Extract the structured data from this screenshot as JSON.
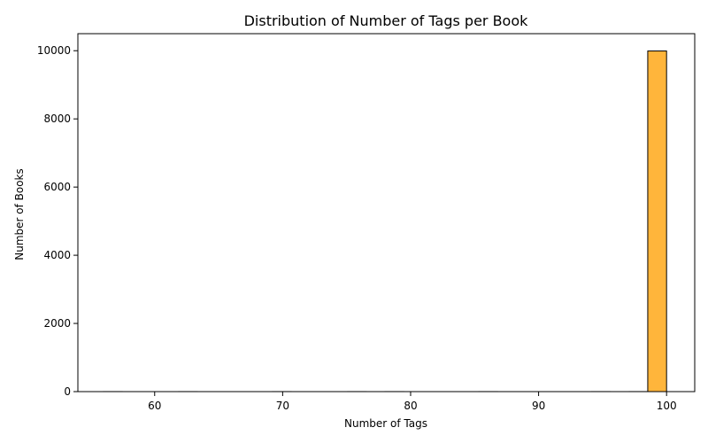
{
  "chart_data": {
    "type": "bar",
    "title": "Distribution of Number of Tags per Book",
    "xlabel": "Number of Tags",
    "ylabel": "Number of Books",
    "xlim": [
      54.0,
      102.2
    ],
    "ylim": [
      0,
      10500
    ],
    "xticks": [
      60,
      70,
      80,
      90,
      100
    ],
    "yticks": [
      0,
      2000,
      4000,
      6000,
      8000,
      10000
    ],
    "bin_edges": [
      56.0,
      57.47,
      58.93,
      60.4,
      61.87,
      63.33,
      64.8,
      66.27,
      67.73,
      69.2,
      70.67,
      72.13,
      73.6,
      75.07,
      76.53,
      78.0,
      79.47,
      80.93,
      82.4,
      83.87,
      85.33,
      86.8,
      88.27,
      89.73,
      91.2,
      92.67,
      94.13,
      95.6,
      97.07,
      98.53,
      100.0
    ],
    "counts": [
      1,
      0,
      0,
      0,
      1,
      0,
      0,
      0,
      0,
      1,
      0,
      0,
      0,
      1,
      0,
      1,
      0,
      0,
      0,
      0,
      1,
      0,
      0,
      0,
      0,
      0,
      1,
      0,
      1,
      9992
    ],
    "bar_color": "#ffb53b",
    "edge_color": "#000000",
    "grid": false,
    "legend": "none"
  }
}
